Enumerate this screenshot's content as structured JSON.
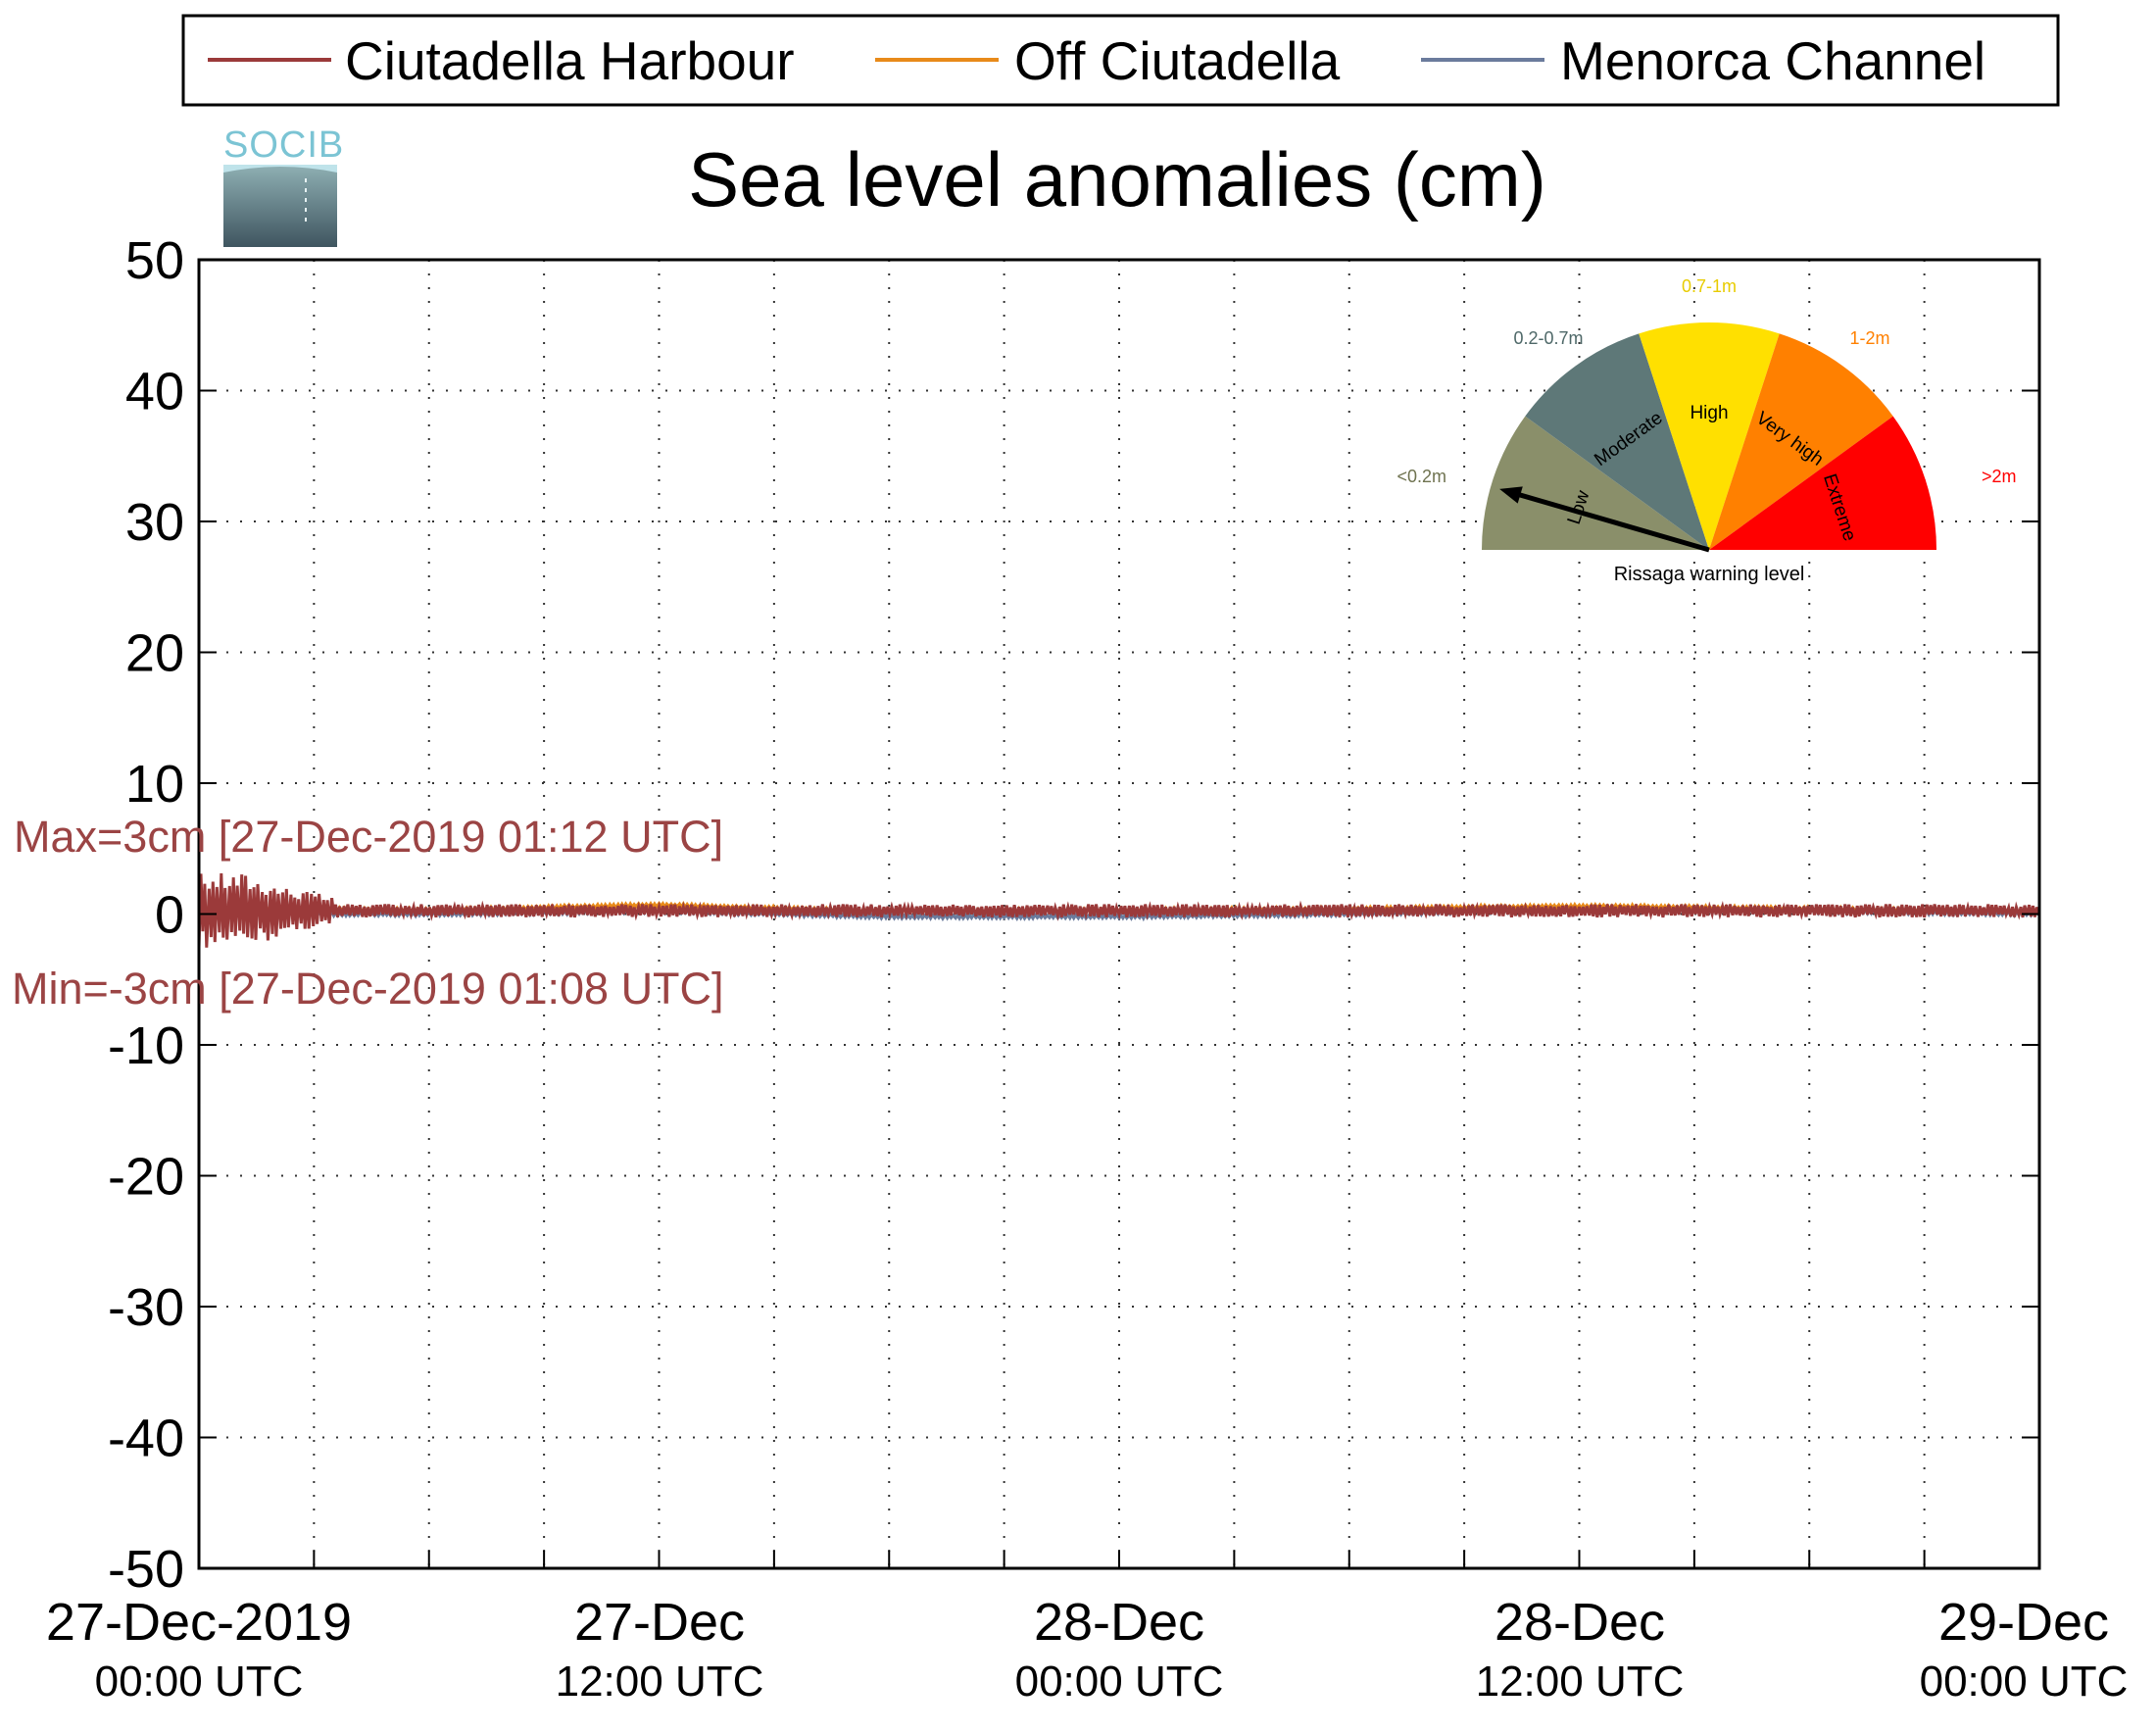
{
  "chart_data": {
    "type": "line",
    "title": "Sea level anomalies (cm)",
    "xlabel": "",
    "ylabel": "",
    "ylim": [
      -50,
      50
    ],
    "yticks": [
      "50",
      "40",
      "30",
      "20",
      "10",
      "0",
      "-10",
      "-20",
      "-30",
      "-40",
      "-50"
    ],
    "xlim": [
      "2019-12-27T00:00",
      "2019-12-29T00:00"
    ],
    "xticks": [
      {
        "date": "27-Dec-2019",
        "time": "00:00 UTC"
      },
      {
        "date": "27-Dec",
        "time": "12:00 UTC"
      },
      {
        "date": "28-Dec",
        "time": "00:00 UTC"
      },
      {
        "date": "28-Dec",
        "time": "12:00 UTC"
      },
      {
        "date": "29-Dec",
        "time": "00:00 UTC"
      }
    ],
    "grid": true,
    "legend_position": "top",
    "legend": [
      "Ciutadella Harbour",
      "Off Ciutadella",
      "Menorca Channel"
    ],
    "series": [
      {
        "name": "Ciutadella Harbour",
        "color": "#9b3a3a",
        "x": [
          "2019-12-27T00:00",
          "2019-12-27T01:12",
          "2019-12-27T01:08",
          "2019-12-27T03:00",
          "2019-12-27T06:00",
          "2019-12-27T12:00",
          "2019-12-27T18:00",
          "2019-12-28T00:00",
          "2019-12-28T06:00",
          "2019-12-28T12:00",
          "2019-12-28T18:00",
          "2019-12-29T00:00"
        ],
        "y": [
          0,
          3,
          -3,
          1,
          0.3,
          0.5,
          0,
          0,
          0.3,
          0.5,
          0.3,
          0
        ]
      },
      {
        "name": "Off Ciutadella",
        "color": "#e88a1a",
        "x": [
          "2019-12-27T00:00",
          "2019-12-27T06:00",
          "2019-12-27T12:00",
          "2019-12-27T18:00",
          "2019-12-28T00:00",
          "2019-12-28T06:00",
          "2019-12-28T12:00",
          "2019-12-28T18:00",
          "2019-12-29T00:00"
        ],
        "y": [
          0.5,
          0.3,
          0.7,
          0.2,
          0.3,
          0.4,
          0.6,
          0.4,
          0.2
        ]
      },
      {
        "name": "Menorca Channel",
        "color": "#6b7b9c",
        "x": [
          "2019-12-27T00:00",
          "2019-12-27T06:00",
          "2019-12-27T12:00",
          "2019-12-27T18:00",
          "2019-12-28T00:00",
          "2019-12-28T06:00",
          "2019-12-28T12:00",
          "2019-12-28T18:00",
          "2019-12-29T00:00"
        ],
        "y": [
          0,
          0,
          0.2,
          -0.2,
          -0.2,
          0,
          0.3,
          0.2,
          0
        ]
      }
    ],
    "annotations": {
      "max": "Max=3cm [27-Dec-2019 01:12 UTC]",
      "min": "Min=-3cm [27-Dec-2019 01:08 UTC]"
    }
  },
  "logo": {
    "text": "SOCIB"
  },
  "gauge": {
    "caption": "Rissaga warning level",
    "current_level": "Low",
    "segments": [
      {
        "name": "Low",
        "range": "<0.2m",
        "color": "#8a8f6a",
        "range_color": "#6f7350"
      },
      {
        "name": "Moderate",
        "range": "0.2-0.7m",
        "color": "#5e7878",
        "range_color": "#4e6868"
      },
      {
        "name": "High",
        "range": "0.7-1m",
        "color": "#ffe000",
        "range_color": "#e8cc00"
      },
      {
        "name": "Very high",
        "range": "1-2m",
        "color": "#ff8000",
        "range_color": "#ff8000"
      },
      {
        "name": "Extreme",
        "range": ">2m",
        "color": "#ff0000",
        "range_color": "#ff0000"
      }
    ]
  }
}
